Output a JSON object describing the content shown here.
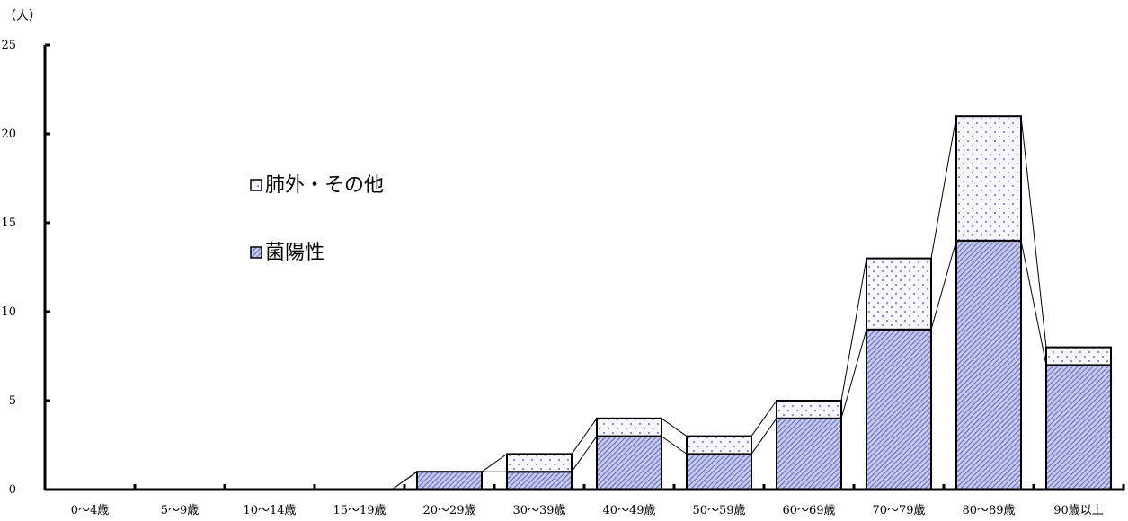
{
  "chart_data": {
    "type": "bar",
    "stacked": true,
    "y_unit_label": "（人）",
    "categories": [
      "0～4歳",
      "5～9歳",
      "10～14歳",
      "15～19歳",
      "20～29歳",
      "30～39歳",
      "40～49歳",
      "50～59歳",
      "60～69歳",
      "70～79歳",
      "80～89歳",
      "90歳以上"
    ],
    "series": [
      {
        "name": "菌陽性",
        "values": [
          0,
          0,
          0,
          0,
          1,
          1,
          3,
          2,
          4,
          9,
          14,
          7
        ],
        "color": "#9aa0d8"
      },
      {
        "name": "肺外・その他",
        "values": [
          0,
          0,
          0,
          0,
          0,
          1,
          1,
          1,
          1,
          4,
          7,
          1
        ],
        "color": "#ffffff"
      }
    ],
    "legend_order": [
      "肺外・その他",
      "菌陽性"
    ],
    "ylim": [
      0,
      25
    ],
    "yticks": [
      0,
      5,
      10,
      15,
      20,
      25
    ],
    "series_lines": true,
    "grid": false,
    "legend_position": "upper-left inside"
  }
}
